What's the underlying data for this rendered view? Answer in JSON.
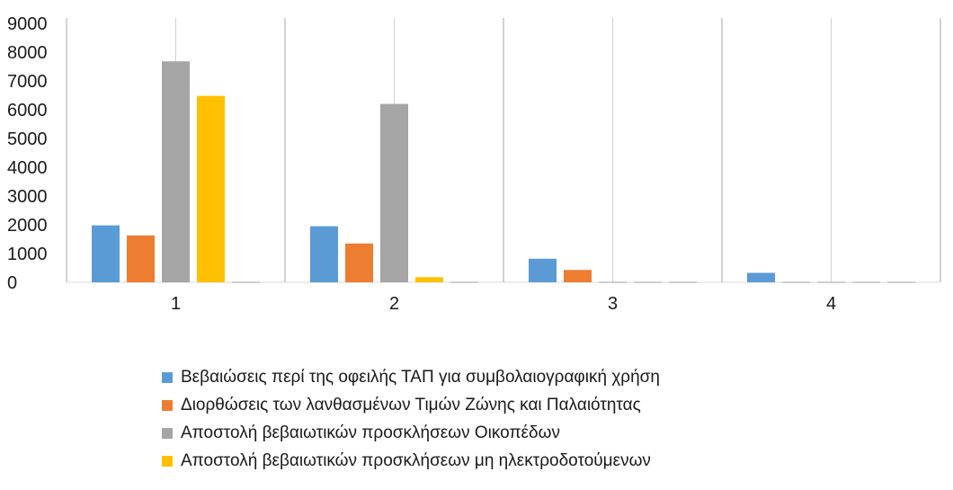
{
  "chart_data": {
    "type": "bar",
    "title": "",
    "xlabel": "",
    "ylabel": "",
    "ylim": [
      0,
      9000
    ],
    "ytick_step": 1000,
    "grid": "vertical",
    "legend_position": "bottom",
    "categories": [
      "1",
      "2",
      "3",
      "4"
    ],
    "series": [
      {
        "name": "Βεβαιώσεις περί της οφειλής ΤΑΠ για συμβολαιογραφική χρήση",
        "color": "#5b9bd5",
        "values": [
          1980,
          1950,
          820,
          330
        ]
      },
      {
        "name": "Διορθώσεις των λανθασμένων Τιμών Ζώνης και Παλαιότητας",
        "color": "#ed7d31",
        "values": [
          1630,
          1350,
          430,
          0
        ]
      },
      {
        "name": "Αποστολή βεβαιωτικών προσκλήσεων Οικοπέδων",
        "color": "#a5a5a5",
        "values": [
          7680,
          6200,
          0,
          0
        ]
      },
      {
        "name": "Αποστολή βεβαιωτικών προσκλήσεων μη ηλεκτροδοτούμενων",
        "color": "#ffc000",
        "values": [
          6480,
          180,
          0,
          0
        ]
      },
      {
        "name": "",
        "color": "#4472c4",
        "values": [
          0,
          0,
          0,
          0
        ]
      }
    ]
  }
}
